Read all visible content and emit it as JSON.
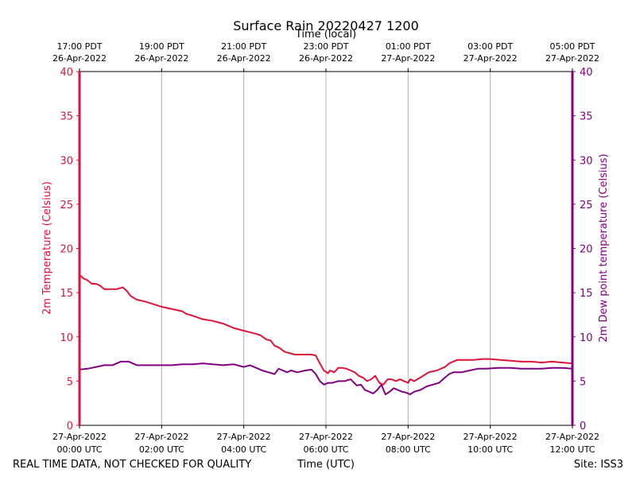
{
  "chart_data": {
    "type": "line",
    "title": "Surface Rain 20220427 1200",
    "top_axis_label": "Time (local)",
    "xlabel": "Time (UTC)",
    "ylabel_left": "2m Temperature (Celsius)",
    "ylabel_right": "2m Dew point temperature (Celsius)",
    "footer_left": "REAL TIME DATA, NOT CHECKED FOR QUALITY",
    "footer_right": "Site: ISS3",
    "x_range_hours": [
      0,
      12
    ],
    "ylim": [
      0,
      40
    ],
    "y_ticks": [
      0,
      5,
      10,
      15,
      20,
      25,
      30,
      35,
      40
    ],
    "grid": "vertical",
    "colors": {
      "temperature": "#dc143c",
      "dewpoint": "#800080",
      "grid": "#b0b0b0",
      "axis": "#000000"
    },
    "x_ticks_utc": [
      {
        "hour": 0,
        "date": "27-Apr-2022",
        "time": "00:00 UTC"
      },
      {
        "hour": 2,
        "date": "27-Apr-2022",
        "time": "02:00 UTC"
      },
      {
        "hour": 4,
        "date": "27-Apr-2022",
        "time": "04:00 UTC"
      },
      {
        "hour": 6,
        "date": "27-Apr-2022",
        "time": "06:00 UTC"
      },
      {
        "hour": 8,
        "date": "27-Apr-2022",
        "time": "08:00 UTC"
      },
      {
        "hour": 10,
        "date": "27-Apr-2022",
        "time": "10:00 UTC"
      },
      {
        "hour": 12,
        "date": "27-Apr-2022",
        "time": "12:00 UTC"
      }
    ],
    "x_ticks_local": [
      {
        "hour": 0,
        "time": "17:00 PDT",
        "date": "26-Apr-2022"
      },
      {
        "hour": 2,
        "time": "19:00 PDT",
        "date": "26-Apr-2022"
      },
      {
        "hour": 4,
        "time": "21:00 PDT",
        "date": "26-Apr-2022"
      },
      {
        "hour": 6,
        "time": "23:00 PDT",
        "date": "26-Apr-2022"
      },
      {
        "hour": 8,
        "time": "01:00 PDT",
        "date": "27-Apr-2022"
      },
      {
        "hour": 10,
        "time": "03:00 PDT",
        "date": "27-Apr-2022"
      },
      {
        "hour": 12,
        "time": "05:00 PDT",
        "date": "27-Apr-2022"
      }
    ],
    "series": [
      {
        "name": "2m Temperature",
        "axis": "left",
        "color": "#dc143c",
        "x": [
          0,
          0.1,
          0.2,
          0.3,
          0.4,
          0.5,
          0.6,
          0.75,
          0.9,
          1.05,
          1.15,
          1.25,
          1.4,
          1.6,
          1.8,
          2.0,
          2.2,
          2.4,
          2.5,
          2.6,
          2.75,
          3.0,
          3.25,
          3.5,
          3.75,
          4.0,
          4.25,
          4.4,
          4.55,
          4.65,
          4.75,
          4.85,
          5.0,
          5.25,
          5.5,
          5.65,
          5.75,
          5.85,
          5.95,
          6.05,
          6.1,
          6.2,
          6.3,
          6.4,
          6.5,
          6.6,
          6.7,
          6.8,
          6.9,
          7.0,
          7.1,
          7.2,
          7.3,
          7.4,
          7.5,
          7.6,
          7.7,
          7.8,
          7.9,
          8.0,
          8.05,
          8.15,
          8.3,
          8.5,
          8.7,
          8.9,
          9.0,
          9.2,
          9.4,
          9.6,
          9.8,
          10.0,
          10.25,
          10.5,
          10.75,
          11.0,
          11.25,
          11.5,
          11.75,
          12.0
        ],
        "values": [
          17.0,
          16.6,
          16.4,
          16.0,
          16.0,
          15.8,
          15.4,
          15.4,
          15.4,
          15.6,
          15.2,
          14.6,
          14.2,
          14.0,
          13.7,
          13.4,
          13.2,
          13.0,
          12.9,
          12.6,
          12.4,
          12.0,
          11.8,
          11.5,
          11.0,
          10.7,
          10.4,
          10.2,
          9.7,
          9.6,
          9.0,
          8.8,
          8.3,
          8.0,
          8.0,
          8.0,
          7.9,
          7.0,
          6.2,
          5.9,
          6.2,
          6.0,
          6.5,
          6.5,
          6.4,
          6.2,
          6.0,
          5.6,
          5.4,
          5.0,
          5.2,
          5.6,
          4.8,
          4.6,
          5.2,
          5.2,
          5.0,
          5.2,
          5.0,
          4.8,
          5.2,
          5.0,
          5.4,
          6.0,
          6.2,
          6.6,
          7.0,
          7.4,
          7.4,
          7.4,
          7.5,
          7.5,
          7.4,
          7.3,
          7.2,
          7.2,
          7.1,
          7.2,
          7.1,
          7.0
        ]
      },
      {
        "name": "2m Dew point temperature",
        "axis": "right",
        "color": "#800080",
        "x": [
          0,
          0.2,
          0.4,
          0.6,
          0.8,
          1.0,
          1.2,
          1.4,
          1.6,
          1.8,
          2.0,
          2.25,
          2.5,
          2.75,
          3.0,
          3.25,
          3.5,
          3.75,
          4.0,
          4.15,
          4.3,
          4.45,
          4.6,
          4.75,
          4.85,
          4.95,
          5.05,
          5.15,
          5.3,
          5.5,
          5.65,
          5.75,
          5.85,
          5.95,
          6.05,
          6.15,
          6.3,
          6.45,
          6.6,
          6.75,
          6.85,
          6.95,
          7.05,
          7.15,
          7.25,
          7.35,
          7.45,
          7.55,
          7.65,
          7.75,
          7.85,
          7.95,
          8.05,
          8.15,
          8.3,
          8.45,
          8.6,
          8.75,
          8.9,
          9.0,
          9.1,
          9.3,
          9.5,
          9.7,
          9.9,
          10.2,
          10.5,
          10.75,
          11.0,
          11.25,
          11.5,
          11.75,
          12.0
        ],
        "values": [
          6.3,
          6.4,
          6.6,
          6.8,
          6.8,
          7.2,
          7.2,
          6.8,
          6.8,
          6.8,
          6.8,
          6.8,
          6.9,
          6.9,
          7.0,
          6.9,
          6.8,
          6.9,
          6.6,
          6.8,
          6.5,
          6.2,
          6.0,
          5.8,
          6.4,
          6.2,
          6.0,
          6.2,
          6.0,
          6.2,
          6.3,
          5.8,
          5.0,
          4.6,
          4.8,
          4.8,
          5.0,
          5.0,
          5.2,
          4.5,
          4.6,
          4.0,
          3.8,
          3.6,
          4.0,
          4.6,
          3.5,
          3.8,
          4.2,
          4.0,
          3.8,
          3.7,
          3.5,
          3.8,
          4.0,
          4.4,
          4.6,
          4.8,
          5.4,
          5.8,
          6.0,
          6.0,
          6.2,
          6.4,
          6.4,
          6.5,
          6.5,
          6.4,
          6.4,
          6.4,
          6.5,
          6.5,
          6.4
        ]
      }
    ]
  }
}
